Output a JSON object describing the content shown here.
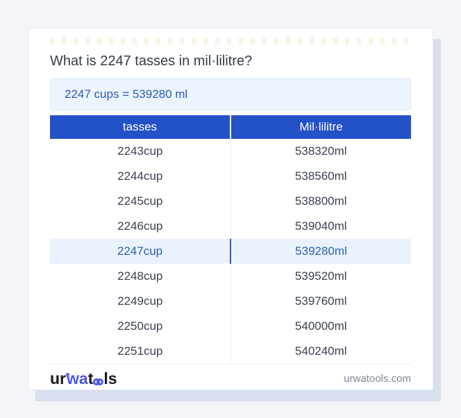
{
  "page": {
    "title": "What is 2247 tasses in mil·lilitre?",
    "result": "2247 cups = 539280 ml",
    "footer": {
      "logo": {
        "ur": "ur",
        "wa": "wa",
        "t": "t",
        "ls": "ls"
      },
      "site": "urwatools.com"
    }
  },
  "table": {
    "headers": [
      "tasses",
      "Mil·lilitre"
    ],
    "rows": [
      {
        "cup": "2243cup",
        "ml": "538320ml",
        "highlight": false
      },
      {
        "cup": "2244cup",
        "ml": "538560ml",
        "highlight": false
      },
      {
        "cup": "2245cup",
        "ml": "538800ml",
        "highlight": false
      },
      {
        "cup": "2246cup",
        "ml": "539040ml",
        "highlight": false
      },
      {
        "cup": "2247cup",
        "ml": "539280ml",
        "highlight": true
      },
      {
        "cup": "2248cup",
        "ml": "539520ml",
        "highlight": false
      },
      {
        "cup": "2249cup",
        "ml": "539760ml",
        "highlight": false
      },
      {
        "cup": "2250cup",
        "ml": "540000ml",
        "highlight": false
      },
      {
        "cup": "2251cup",
        "ml": "540240ml",
        "highlight": false
      }
    ]
  },
  "colors": {
    "page_bg": "#f3f5f9",
    "shadow": "#d9dfec",
    "dash": "#f9f3e6",
    "header_blue": "#2351c8",
    "result_bg": "#ecf4fd",
    "result_border": "#dde9f8",
    "result_text": "#2b58b8",
    "highlight_bg": "#eaf3fd",
    "highlight_text": "#2e5cb8",
    "divider": "#e9edf3",
    "logo_dark": "#17191d",
    "logo_blue": "#4a56ee"
  }
}
